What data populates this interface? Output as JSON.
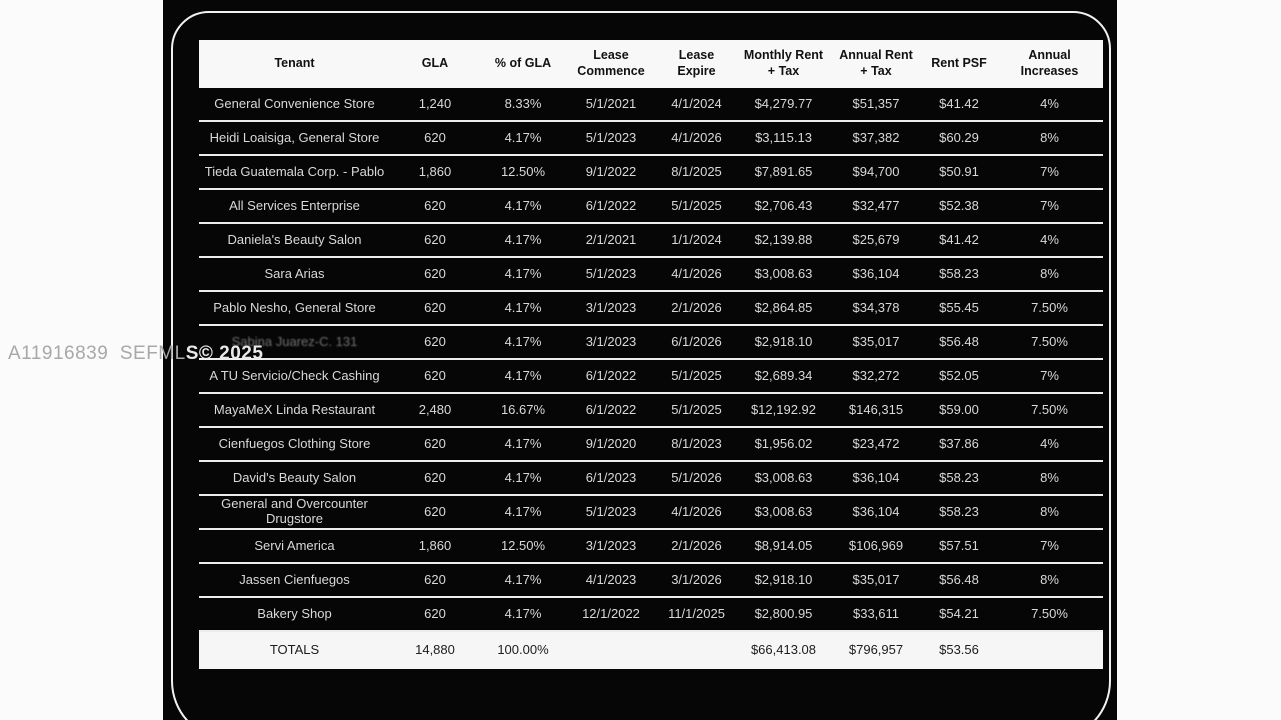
{
  "watermark": {
    "text": "A11916839 SEFMLS© 2025",
    "part_on_white": "A11916839  SEFML",
    "part_on_black": "S© 2025"
  },
  "colors": {
    "photo_background": "#060606",
    "page_margin": "#fbfbfb",
    "header_background": "#f8f8f8",
    "row_text": "#d9d9d9",
    "row_separator": "#ededed",
    "frame_outline": "#f2f2f2",
    "watermark_gray": "#a8a8a8"
  },
  "table": {
    "columns": [
      "Tenant",
      "GLA",
      "% of GLA",
      "Lease Commence",
      "Lease Expire",
      "Monthly Rent + Tax",
      "Annual Rent + Tax",
      "Rent PSF",
      "Annual Increases"
    ],
    "rows": [
      {
        "tenant": "General Convenience Store",
        "gla": "1,240",
        "pct_gla": "8.33%",
        "commence": "5/1/2021",
        "expire": "4/1/2024",
        "monthly": "$4,279.77",
        "annual": "$51,357",
        "psf": "$41.42",
        "increase": "4%"
      },
      {
        "tenant": "Heidi Loaisiga, General Store",
        "gla": "620",
        "pct_gla": "4.17%",
        "commence": "5/1/2023",
        "expire": "4/1/2026",
        "monthly": "$3,115.13",
        "annual": "$37,382",
        "psf": "$60.29",
        "increase": "8%"
      },
      {
        "tenant": "Tieda Guatemala Corp. - Pablo",
        "gla": "1,860",
        "pct_gla": "12.50%",
        "commence": "9/1/2022",
        "expire": "8/1/2025",
        "monthly": "$7,891.65",
        "annual": "$94,700",
        "psf": "$50.91",
        "increase": "7%"
      },
      {
        "tenant": "All Services Enterprise",
        "gla": "620",
        "pct_gla": "4.17%",
        "commence": "6/1/2022",
        "expire": "5/1/2025",
        "monthly": "$2,706.43",
        "annual": "$32,477",
        "psf": "$52.38",
        "increase": "7%"
      },
      {
        "tenant": "Daniela's Beauty Salon",
        "gla": "620",
        "pct_gla": "4.17%",
        "commence": "2/1/2021",
        "expire": "1/1/2024",
        "monthly": "$2,139.88",
        "annual": "$25,679",
        "psf": "$41.42",
        "increase": "4%"
      },
      {
        "tenant": "Sara Arias",
        "gla": "620",
        "pct_gla": "4.17%",
        "commence": "5/1/2023",
        "expire": "4/1/2026",
        "monthly": "$3,008.63",
        "annual": "$36,104",
        "psf": "$58.23",
        "increase": "8%"
      },
      {
        "tenant": "Pablo Nesho, General Store",
        "gla": "620",
        "pct_gla": "4.17%",
        "commence": "3/1/2023",
        "expire": "2/1/2026",
        "monthly": "$2,864.85",
        "annual": "$34,378",
        "psf": "$55.45",
        "increase": "7.50%"
      },
      {
        "tenant": "Sabina Juarez-C. 131",
        "obscured": true,
        "gla": "620",
        "pct_gla": "4.17%",
        "commence": "3/1/2023",
        "expire": "6/1/2026",
        "monthly": "$2,918.10",
        "annual": "$35,017",
        "psf": "$56.48",
        "increase": "7.50%"
      },
      {
        "tenant": "A TU Servicio/Check Cashing",
        "gla": "620",
        "pct_gla": "4.17%",
        "commence": "6/1/2022",
        "expire": "5/1/2025",
        "monthly": "$2,689.34",
        "annual": "$32,272",
        "psf": "$52.05",
        "increase": "7%"
      },
      {
        "tenant": "MayaMeX Linda Restaurant",
        "gla": "2,480",
        "pct_gla": "16.67%",
        "commence": "6/1/2022",
        "expire": "5/1/2025",
        "monthly": "$12,192.92",
        "annual": "$146,315",
        "psf": "$59.00",
        "increase": "7.50%"
      },
      {
        "tenant": "Cienfuegos Clothing Store",
        "gla": "620",
        "pct_gla": "4.17%",
        "commence": "9/1/2020",
        "expire": "8/1/2023",
        "monthly": "$1,956.02",
        "annual": "$23,472",
        "psf": "$37.86",
        "increase": "4%"
      },
      {
        "tenant": "David's Beauty Salon",
        "gla": "620",
        "pct_gla": "4.17%",
        "commence": "6/1/2023",
        "expire": "5/1/2026",
        "monthly": "$3,008.63",
        "annual": "$36,104",
        "psf": "$58.23",
        "increase": "8%"
      },
      {
        "tenant": "General and Overcounter Drugstore",
        "gla": "620",
        "pct_gla": "4.17%",
        "commence": "5/1/2023",
        "expire": "4/1/2026",
        "monthly": "$3,008.63",
        "annual": "$36,104",
        "psf": "$58.23",
        "increase": "8%"
      },
      {
        "tenant": "Servi America",
        "gla": "1,860",
        "pct_gla": "12.50%",
        "commence": "3/1/2023",
        "expire": "2/1/2026",
        "monthly": "$8,914.05",
        "annual": "$106,969",
        "psf": "$57.51",
        "increase": "7%"
      },
      {
        "tenant": "Jassen Cienfuegos",
        "gla": "620",
        "pct_gla": "4.17%",
        "commence": "4/1/2023",
        "expire": "3/1/2026",
        "monthly": "$2,918.10",
        "annual": "$35,017",
        "psf": "$56.48",
        "increase": "8%"
      },
      {
        "tenant": "Bakery Shop",
        "gla": "620",
        "pct_gla": "4.17%",
        "commence": "12/1/2022",
        "expire": "11/1/2025",
        "monthly": "$2,800.95",
        "annual": "$33,611",
        "psf": "$54.21",
        "increase": "7.50%"
      }
    ],
    "totals": {
      "label": "TOTALS",
      "gla": "14,880",
      "pct_gla": "100.00%",
      "commence": "",
      "expire": "",
      "monthly": "$66,413.08",
      "annual": "$796,957",
      "psf": "$53.56",
      "increase": ""
    }
  }
}
